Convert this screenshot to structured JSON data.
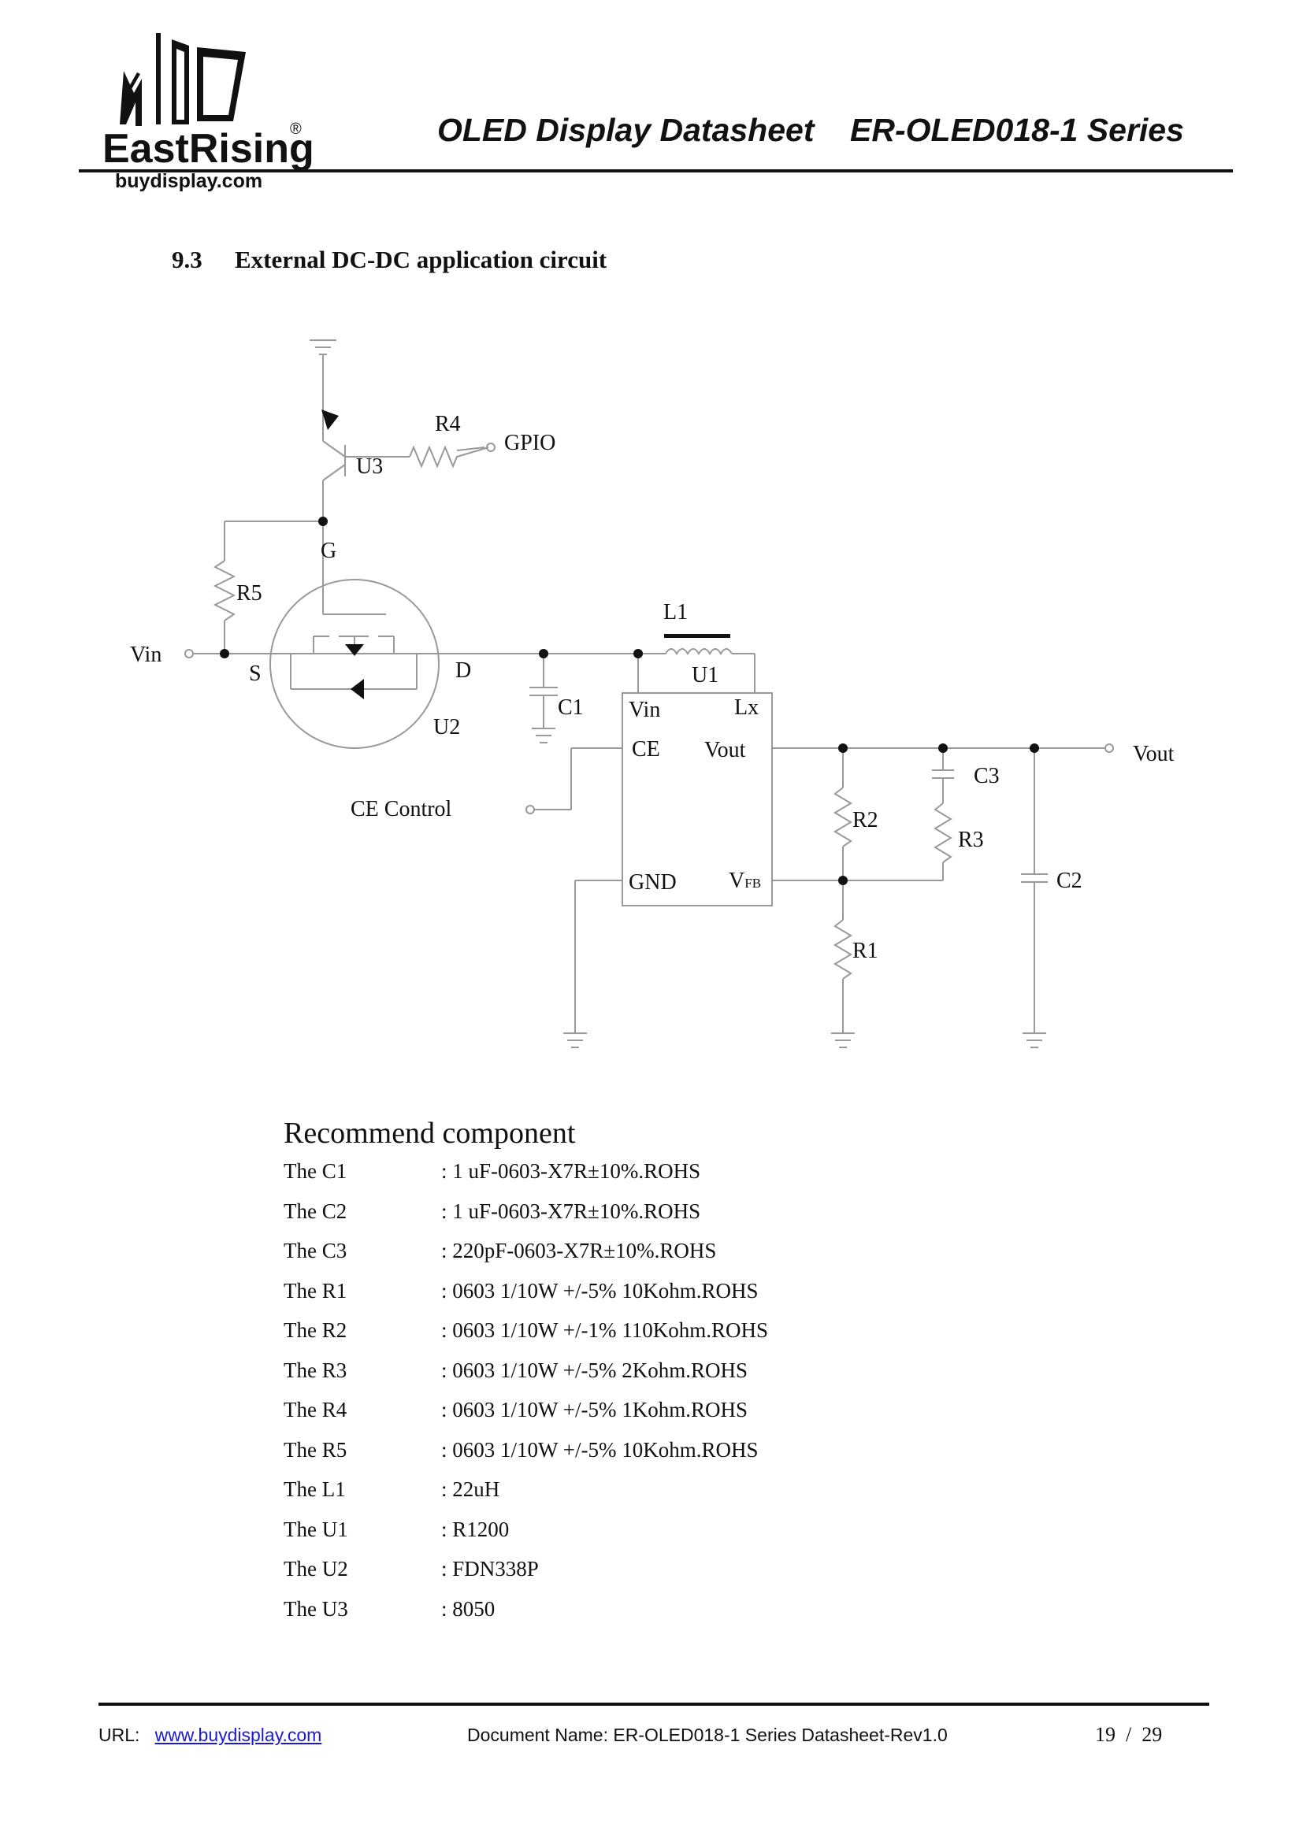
{
  "header": {
    "logo_brand": "EastRising",
    "logo_site": "buydisplay.com",
    "logo_mark": "®",
    "title": "OLED Display Datasheet    ER-OLED018-1 Series"
  },
  "section": {
    "number": "9.3",
    "title": "External DC-DC application circuit"
  },
  "circuit": {
    "labels": {
      "r4": "R4",
      "gpio": "GPIO",
      "u3": "U3",
      "g": "G",
      "r5": "R5",
      "vin_in": "Vin",
      "s": "S",
      "d": "D",
      "u2": "U2",
      "l1": "L1",
      "u1": "U1",
      "c1": "C1",
      "u1_vin": "Vin",
      "u1_lx": "Lx",
      "u1_ce": "CE",
      "u1_vout": "Vout",
      "u1_gnd": "GND",
      "u1_vfb": "V",
      "u1_vfb_sub": "FB",
      "vout": "Vout",
      "c3": "C3",
      "r2": "R2",
      "r3": "R3",
      "c2": "C2",
      "r1": "R1",
      "ce_control": "CE Control"
    }
  },
  "recommend": {
    "title": "Recommend component",
    "items": [
      {
        "name": "The C1",
        "value": ": 1 uF-0603-X7R±10%.ROHS"
      },
      {
        "name": "The C2",
        "value": ": 1 uF-0603-X7R±10%.ROHS"
      },
      {
        "name": "The C3",
        "value": ": 220pF-0603-X7R±10%.ROHS"
      },
      {
        "name": "The R1",
        "value": ": 0603 1/10W +/-5% 10Kohm.ROHS"
      },
      {
        "name": "The R2",
        "value": ": 0603 1/10W +/-1% 110Kohm.ROHS"
      },
      {
        "name": "The R3",
        "value": ": 0603 1/10W +/-5% 2Kohm.ROHS"
      },
      {
        "name": "The R4",
        "value": ": 0603 1/10W +/-5% 1Kohm.ROHS"
      },
      {
        "name": "The R5",
        "value": ": 0603 1/10W +/-5% 10Kohm.ROHS"
      },
      {
        "name": "The L1",
        "value": ": 22uH"
      },
      {
        "name": "The U1",
        "value": ": R1200"
      },
      {
        "name": "The U2",
        "value": ": FDN338P"
      },
      {
        "name": "The U3",
        "value": ": 8050"
      }
    ]
  },
  "footer": {
    "url_label": "URL:",
    "url": "www.buydisplay.com",
    "document_name": "Document Name: ER-OLED018-1 Series Datasheet-Rev1.0",
    "page": "19  /  29"
  }
}
